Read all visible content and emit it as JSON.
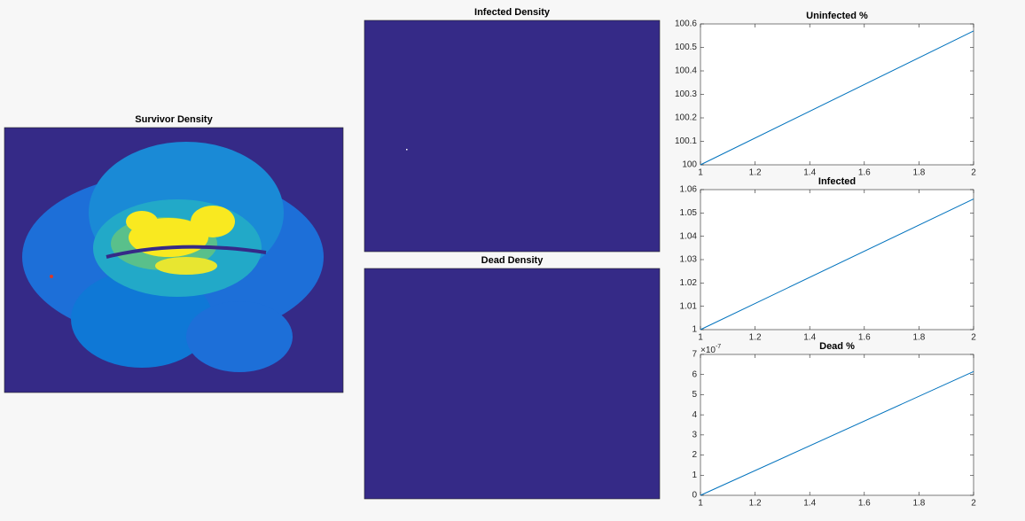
{
  "chart_data": [
    {
      "type": "heatmap",
      "title": "Survivor Density",
      "color": "#352a87"
    },
    {
      "type": "heatmap",
      "title": "Infected Density",
      "color": "#352a87"
    },
    {
      "type": "heatmap",
      "title": "Dead Density",
      "color": "#352a87"
    },
    {
      "type": "line",
      "title": "Uninfected %",
      "x": [
        1,
        2
      ],
      "series": [
        {
          "color": "#0072bd",
          "values": [
            100,
            100.57
          ]
        }
      ],
      "xlim": [
        1,
        2
      ],
      "xticks": [
        1,
        1.2,
        1.4,
        1.6,
        1.8,
        2
      ],
      "ylim": [
        100,
        100.6
      ],
      "yticks": [
        100,
        100.1,
        100.2,
        100.3,
        100.4,
        100.5,
        100.6
      ]
    },
    {
      "type": "line",
      "title": "Infected",
      "x": [
        1,
        2
      ],
      "series": [
        {
          "color": "#0072bd",
          "values": [
            1,
            1.056
          ]
        }
      ],
      "xlim": [
        1,
        2
      ],
      "xticks": [
        1,
        1.2,
        1.4,
        1.6,
        1.8,
        2
      ],
      "ylim": [
        1,
        1.06
      ],
      "yticks": [
        1,
        1.01,
        1.02,
        1.03,
        1.04,
        1.05,
        1.06
      ]
    },
    {
      "type": "line",
      "title": "Dead %",
      "x": [
        1,
        2
      ],
      "series": [
        {
          "color": "#0072bd",
          "values": [
            0,
            6.15e-07
          ]
        }
      ],
      "xlim": [
        1,
        2
      ],
      "xticks": [
        1,
        1.2,
        1.4,
        1.6,
        1.8,
        2
      ],
      "ylim": [
        0,
        7e-07
      ],
      "yticks": [
        0,
        {
          "value": 1e-07,
          "label": "1"
        },
        {
          "value": 2e-07,
          "label": "2"
        },
        {
          "value": 3e-07,
          "label": "3"
        },
        {
          "value": 4e-07,
          "label": "4"
        },
        {
          "value": 5e-07,
          "label": "5"
        },
        {
          "value": 6e-07,
          "label": "6"
        },
        {
          "value": 7e-07,
          "label": "7"
        }
      ],
      "y_multiplier": {
        "base": "×10",
        "exponent": "-7"
      }
    }
  ]
}
